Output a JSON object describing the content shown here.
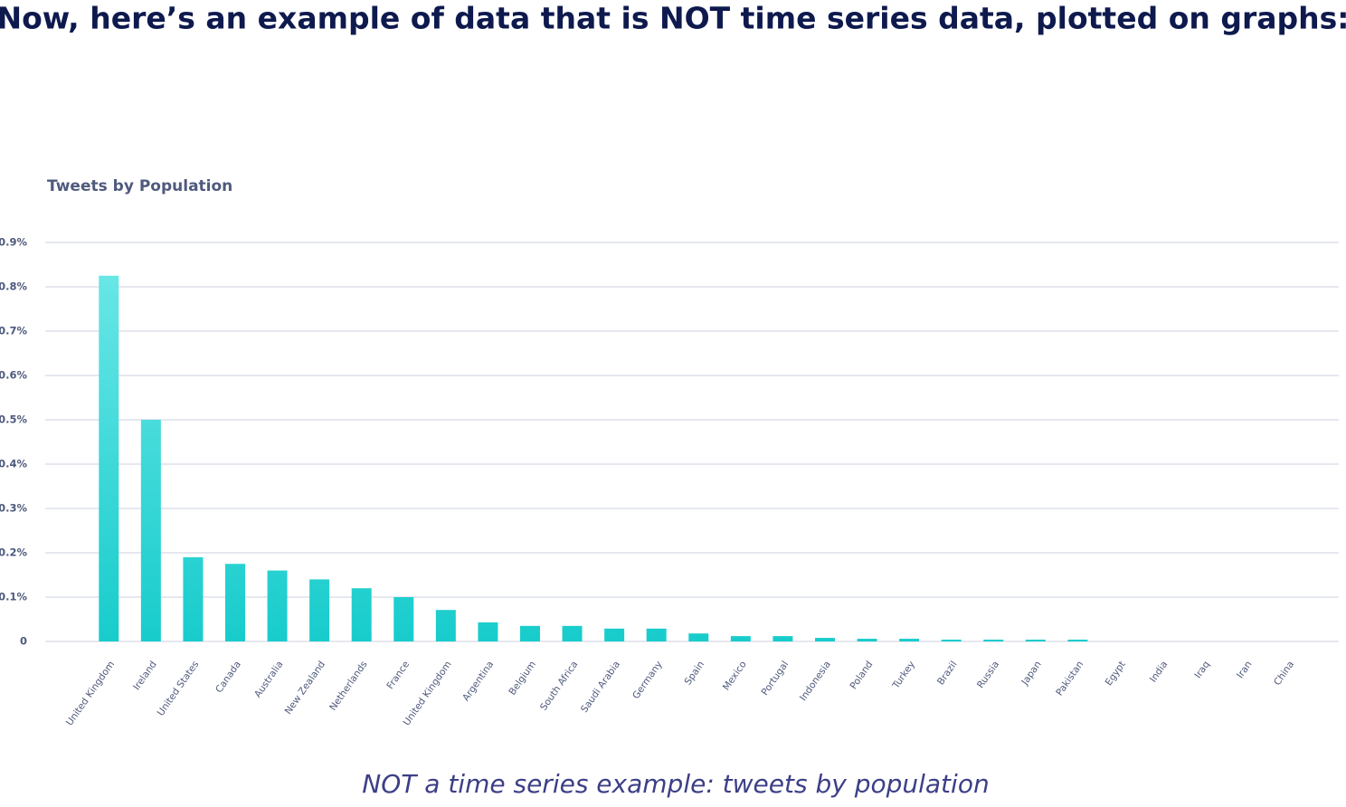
{
  "heading": "Now, here’s an example of data that is NOT time series data, plotted on graphs:",
  "chart_data": {
    "type": "bar",
    "title": "Tweets by Population",
    "categories": [
      "United Kingdom",
      "Ireland",
      "United States",
      "Canada",
      "Australia",
      "New Zealand",
      "Netherlands",
      "France",
      "United Kingdom",
      "Argentina",
      "Belgium",
      "South Africa",
      "Saudi Arabia",
      "Germany",
      "Spain",
      "Mexico",
      "Portugal",
      "Indonesia",
      "Poland",
      "Turkey",
      "Brazil",
      "Russia",
      "Japan",
      "Pakistan",
      "Egypt",
      "India",
      "Iraq",
      "Iran",
      "China"
    ],
    "values": [
      0.825,
      0.5,
      0.19,
      0.175,
      0.16,
      0.14,
      0.12,
      0.1,
      0.071,
      0.043,
      0.035,
      0.035,
      0.029,
      0.029,
      0.018,
      0.012,
      0.012,
      0.008,
      0.006,
      0.006,
      0.004,
      0.004,
      0.004,
      0.004,
      0,
      0,
      0,
      0,
      0
    ],
    "color": [
      "#68e6e6",
      "#18cccc"
    ],
    "ylim": [
      0,
      0.9
    ],
    "yticks": [
      0,
      {
        "value": 0.1,
        "label": "0.1%"
      },
      {
        "value": 0.2,
        "label": "0.2%"
      },
      {
        "value": 0.3,
        "label": "0.3%"
      },
      {
        "value": 0.4,
        "label": "0.4%"
      },
      {
        "value": 0.5,
        "label": "0.5%"
      },
      {
        "value": 0.6,
        "label": "0.6%"
      },
      {
        "value": 0.7,
        "label": "0.7%"
      },
      {
        "value": 0.8,
        "label": "0.8%"
      },
      {
        "value": 0.9,
        "label": "0.9%"
      }
    ],
    "grid": true
  },
  "caption": "NOT a time series example: tweets by population"
}
